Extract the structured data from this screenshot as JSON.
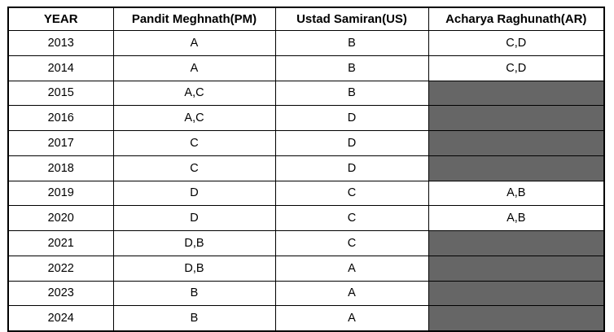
{
  "colors": {
    "filled_cell": "#666666",
    "border": "#000000",
    "text": "#000000",
    "background": "#ffffff"
  },
  "chart_data": {
    "type": "table",
    "title": "",
    "headers": [
      "YEAR",
      "Pandit Meghnath(PM)",
      "Ustad Samiran(US)",
      "Acharya Raghunath(AR)"
    ],
    "rows": [
      {
        "year": "2013",
        "pm": "A",
        "us": "B",
        "ar": "C,D",
        "ar_shaded": false
      },
      {
        "year": "2014",
        "pm": "A",
        "us": "B",
        "ar": "C,D",
        "ar_shaded": false
      },
      {
        "year": "2015",
        "pm": "A,C",
        "us": "B",
        "ar": "",
        "ar_shaded": true
      },
      {
        "year": "2016",
        "pm": "A,C",
        "us": "D",
        "ar": "",
        "ar_shaded": true
      },
      {
        "year": "2017",
        "pm": "C",
        "us": "D",
        "ar": "",
        "ar_shaded": true
      },
      {
        "year": "2018",
        "pm": "C",
        "us": "D",
        "ar": "",
        "ar_shaded": true
      },
      {
        "year": "2019",
        "pm": "D",
        "us": "C",
        "ar": "A,B",
        "ar_shaded": false
      },
      {
        "year": "2020",
        "pm": "D",
        "us": "C",
        "ar": "A,B",
        "ar_shaded": false
      },
      {
        "year": "2021",
        "pm": "D,B",
        "us": "C",
        "ar": "",
        "ar_shaded": true
      },
      {
        "year": "2022",
        "pm": "D,B",
        "us": "A",
        "ar": "",
        "ar_shaded": true
      },
      {
        "year": "2023",
        "pm": "B",
        "us": "A",
        "ar": "",
        "ar_shaded": true
      },
      {
        "year": "2024",
        "pm": "B",
        "us": "A",
        "ar": "",
        "ar_shaded": true
      }
    ]
  }
}
